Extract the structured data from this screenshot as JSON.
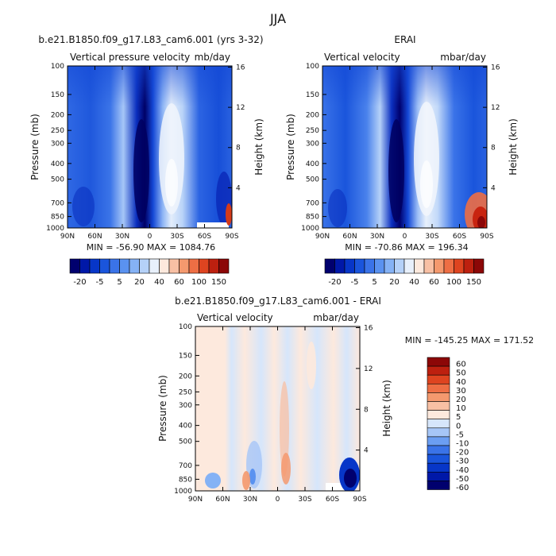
{
  "figure": {
    "title": "JJA"
  },
  "colors": {
    "pressure_velocity_levels": [
      "#00006e",
      "#0018a8",
      "#0736c8",
      "#1a55dc",
      "#3a73e8",
      "#5a92f0",
      "#85b2f5",
      "#b5d1f8",
      "#e8f0fb",
      "#fde9dd",
      "#f8c0a4",
      "#f4996e",
      "#ee6e44",
      "#de4420",
      "#bd200f",
      "#8c0707"
    ],
    "diff_levels": [
      "#00006e",
      "#0018a8",
      "#0736c8",
      "#1a55dc",
      "#3a73e8",
      "#6b9ef2",
      "#a6c6f7",
      "#d6e6fb",
      "#fde9dd",
      "#f8c0a4",
      "#f4996e",
      "#ee6e44",
      "#de4420",
      "#bd200f",
      "#8c0707"
    ]
  },
  "chart_data": [
    {
      "type": "heatmap",
      "panel_title": "b.e21.B1850.f09_g17.L83_cam6.001 (yrs 3-32)",
      "field_label": "Vertical pressure velocity",
      "units": "mb/day",
      "ylabel": "Pressure (mb)",
      "ylabel_right": "Height (km)",
      "x_ticks": [
        "90N",
        "60N",
        "30N",
        "0",
        "30S",
        "60S",
        "90S"
      ],
      "y_ticks": [
        100,
        150,
        200,
        250,
        300,
        400,
        500,
        700,
        850,
        1000
      ],
      "y_right_ticks": [
        4,
        8,
        12,
        16
      ],
      "min": -56.9,
      "max": 1084.76,
      "stats_text": "MIN = -56.90   MAX = 1084.76",
      "levels": [
        "-20",
        "-5",
        "5",
        "20",
        "40",
        "60",
        "100",
        "150"
      ]
    },
    {
      "type": "heatmap",
      "panel_title": "ERAI",
      "field_label": "Vertical velocity",
      "units": "mbar/day",
      "ylabel": "Pressure (mb)",
      "ylabel_right": "Height (km)",
      "x_ticks": [
        "90N",
        "60N",
        "30N",
        "0",
        "30S",
        "60S",
        "90S"
      ],
      "y_ticks": [
        100,
        150,
        200,
        250,
        300,
        400,
        500,
        700,
        850,
        1000
      ],
      "y_right_ticks": [
        4,
        8,
        12,
        16
      ],
      "min": -70.86,
      "max": 196.34,
      "stats_text": "MIN = -70.86   MAX = 196.34",
      "levels": [
        "-20",
        "-5",
        "5",
        "20",
        "40",
        "60",
        "100",
        "150"
      ]
    },
    {
      "type": "heatmap",
      "panel_title": "b.e21.B1850.f09_g17.L83_cam6.001 - ERAI",
      "field_label": "Vertical velocity",
      "units": "mbar/day",
      "ylabel": "Pressure (mb)",
      "ylabel_right": "Height (km)",
      "x_ticks": [
        "90N",
        "60N",
        "30N",
        "0",
        "30S",
        "60S",
        "90S"
      ],
      "y_ticks": [
        100,
        150,
        200,
        250,
        300,
        400,
        500,
        700,
        850,
        1000
      ],
      "y_right_ticks": [
        4,
        8,
        12,
        16
      ],
      "min": -145.25,
      "max": 171.52,
      "stats_text": "MIN = -145.25   MAX = 171.52",
      "levels": [
        "60",
        "50",
        "40",
        "30",
        "20",
        "10",
        "5",
        "0",
        "-5",
        "-10",
        "-20",
        "-30",
        "-40",
        "-50",
        "-60"
      ]
    }
  ]
}
